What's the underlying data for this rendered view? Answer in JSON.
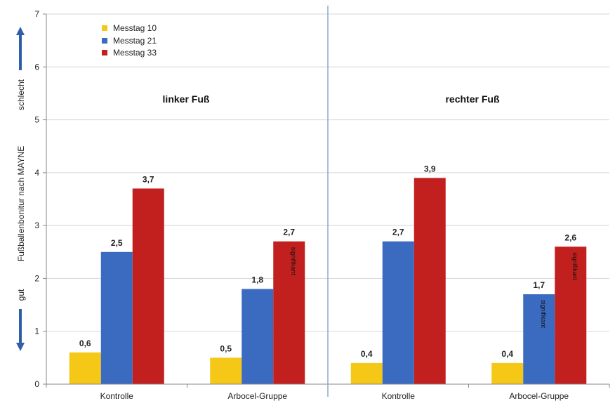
{
  "chart_data": {
    "type": "bar",
    "ylabel": "Fußballenbonitur nach MAYNE",
    "ylim": [
      0,
      7
    ],
    "yticks": [
      0,
      1,
      2,
      3,
      4,
      5,
      6,
      7
    ],
    "grid": true,
    "legend_position": "top-left",
    "y_annotations": {
      "top": "schlecht",
      "bottom": "gut"
    },
    "categories": [
      "Kontrolle",
      "Arbocel-Gruppe",
      "Kontrolle",
      "Arbocel-Gruppe"
    ],
    "panels": [
      {
        "title": "linker Fuß",
        "categories": [
          "Kontrolle",
          "Arbocel-Gruppe"
        ]
      },
      {
        "title": "rechter Fuß",
        "categories": [
          "Kontrolle",
          "Arbocel-Gruppe"
        ]
      }
    ],
    "series": [
      {
        "name": "Messtag 10",
        "color": "#F5C818",
        "values": [
          0.6,
          0.5,
          0.4,
          0.4
        ],
        "labels": [
          "0,6",
          "0,5",
          "0,4",
          "0,4"
        ],
        "annotations": [
          "",
          "",
          "",
          ""
        ]
      },
      {
        "name": "Messtag 21",
        "color": "#3A6BC0",
        "values": [
          2.5,
          1.8,
          2.7,
          1.7
        ],
        "labels": [
          "2,5",
          "1,8",
          "2,7",
          "1,7"
        ],
        "annotations": [
          "",
          "",
          "",
          "signifikant"
        ]
      },
      {
        "name": "Messtag 33",
        "color": "#C2201E",
        "values": [
          3.7,
          2.7,
          3.9,
          2.6
        ],
        "labels": [
          "3,7",
          "2,7",
          "3,9",
          "2,6"
        ],
        "annotations": [
          "",
          "signifikant",
          "",
          "signifikant"
        ]
      }
    ]
  },
  "colors": {
    "arrow": "#2F5FA8",
    "divider": "#8EA9CC",
    "grid": "#D5D5D5"
  }
}
